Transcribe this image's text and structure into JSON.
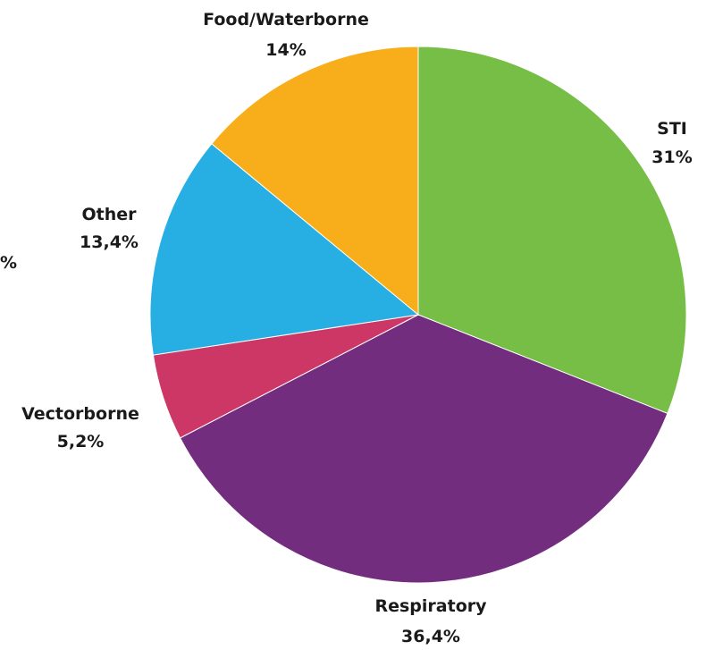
{
  "chart_data": {
    "type": "pie",
    "slices": [
      {
        "label": "STI",
        "value_label": "31%",
        "value": 31.0,
        "color": "#76be45"
      },
      {
        "label": "Respiratory",
        "value_label": "36,4%",
        "value": 36.4,
        "color": "#732d7e"
      },
      {
        "label": "Vectorborne",
        "value_label": "5,2%",
        "value": 5.2,
        "color": "#cc3766"
      },
      {
        "label": "Other",
        "value_label": "13,4%",
        "value": 13.4,
        "color": "#27aee3"
      },
      {
        "label": "Food/Waterborne",
        "value_label": "14%",
        "value": 14.0,
        "color": "#f8ae1b"
      }
    ],
    "clipped_text": "%"
  }
}
